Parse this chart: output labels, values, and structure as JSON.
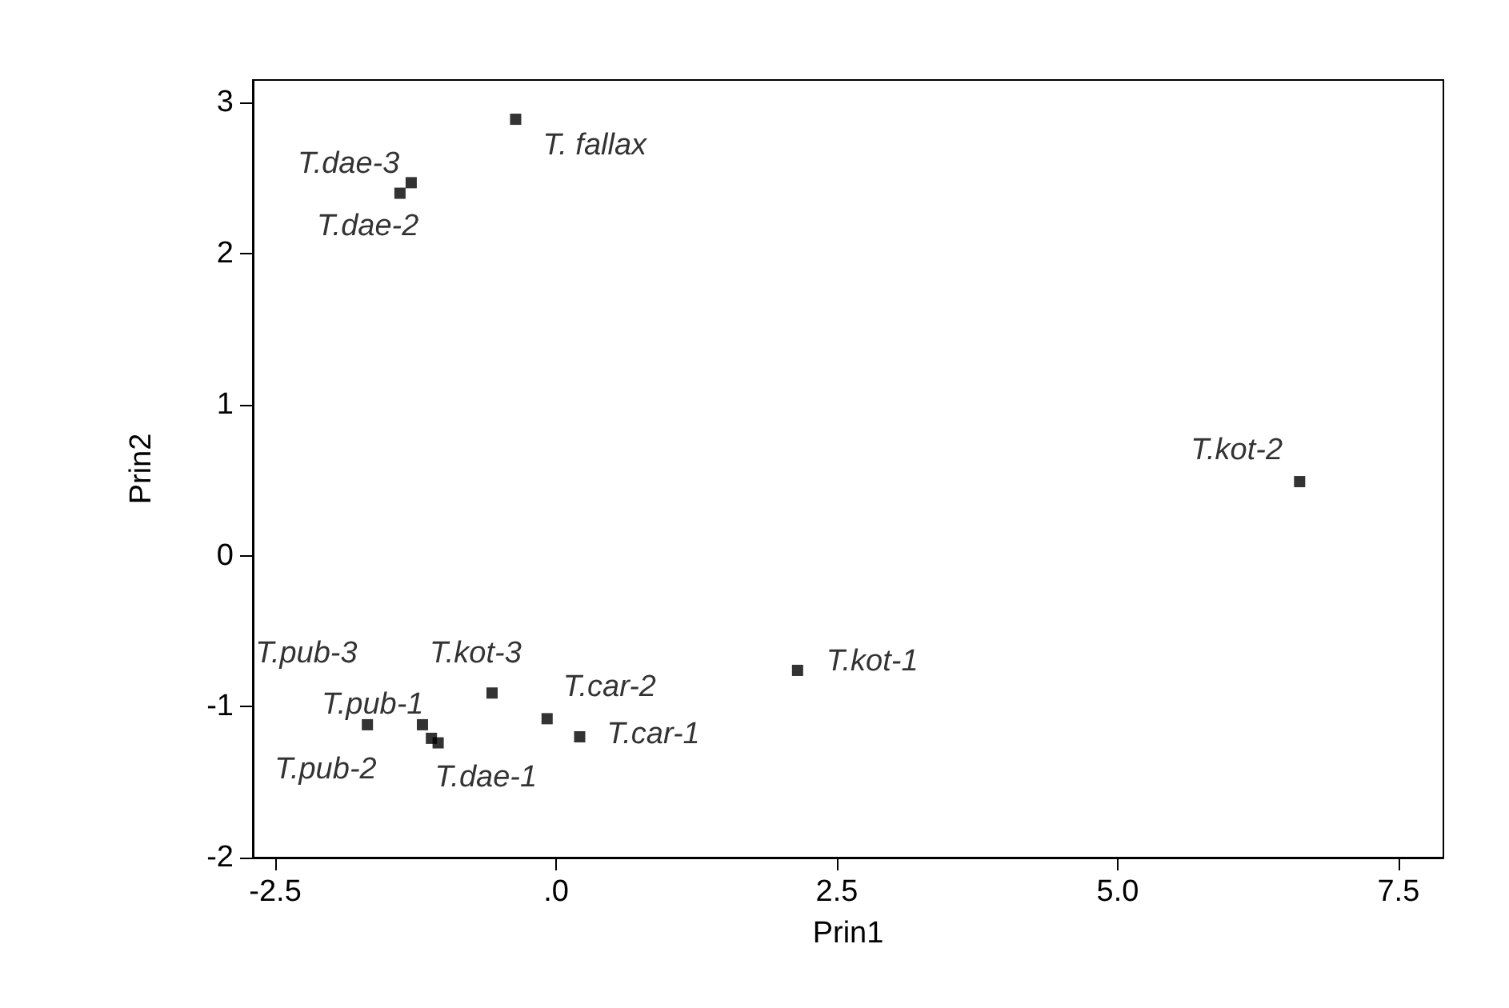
{
  "chart_data": {
    "type": "scatter",
    "xlabel": "Prin1",
    "ylabel": "Prin2",
    "x": [
      -0.36,
      -1.29,
      -1.39,
      6.62,
      2.15,
      -0.08,
      0.21,
      -0.57,
      -1.19,
      -1.68,
      -1.11,
      -1.05
    ],
    "series": [
      {
        "color": "#000000",
        "values": [
          2.89,
          2.47,
          2.4,
          0.49,
          -0.76,
          -1.08,
          -1.2,
          -0.91,
          -1.12,
          -1.12,
          -1.21,
          -1.24
        ]
      }
    ],
    "xlim": [
      -2.7,
      7.9
    ],
    "ylim": [
      -2,
      3.15
    ],
    "xticks": [
      {
        "value": -2.5,
        "label": "-2.5"
      },
      {
        "value": 0,
        "label": ".0"
      },
      {
        "value": 2.5,
        "label": "2.5"
      },
      {
        "value": 5,
        "label": "5.0"
      },
      {
        "value": 7.5,
        "label": "7.5"
      }
    ],
    "yticks": [
      -2,
      -1,
      0,
      1,
      2,
      3
    ],
    "marker": "square",
    "grid": false,
    "annotations": [
      {
        "text": "T. fallax",
        "x": -0.36,
        "y": 2.89
      },
      {
        "text": "T.dae-3",
        "x": -1.29,
        "y": 2.47
      },
      {
        "text": "T.dae-2",
        "x": -1.39,
        "y": 2.4
      },
      {
        "text": "T.kot-2",
        "x": 6.62,
        "y": 0.49
      },
      {
        "text": "T.kot-1",
        "x": 2.15,
        "y": -0.76
      },
      {
        "text": "T.car-2",
        "x": -0.08,
        "y": -1.08
      },
      {
        "text": "T.car-1",
        "x": 0.21,
        "y": -1.2
      },
      {
        "text": "T.kot-3",
        "x": -0.57,
        "y": -0.91
      },
      {
        "text": "T.pub-1",
        "x": -1.19,
        "y": -1.12
      },
      {
        "text": "T.pub-3",
        "x": -1.68,
        "y": -1.12
      },
      {
        "text": "T.pub-2",
        "x": -1.11,
        "y": -1.21
      },
      {
        "text": "T.dae-1",
        "x": -1.05,
        "y": -1.24
      }
    ]
  }
}
